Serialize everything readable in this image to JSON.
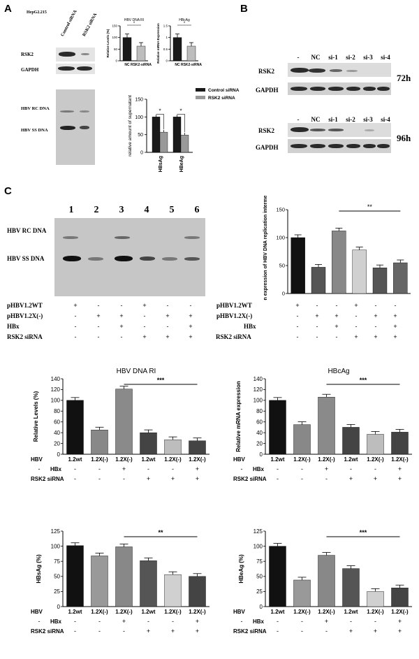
{
  "panel_a": {
    "letter": "A",
    "cell_line": "HepG2.215",
    "lane_labels": [
      "Control siRNA",
      "RSK2 siRNA"
    ],
    "row_rsk2": "RSK2",
    "row_gapdh": "GAPDH",
    "rc_dna": "HBV RC DNA",
    "ss_dna": "HBV SS DNA"
  },
  "panel_b": {
    "letter": "B",
    "lanes": [
      "-",
      "NC",
      "si-1",
      "si-2",
      "si-3",
      "si-4"
    ],
    "row_rsk2": "RSK2",
    "row_gapdh": "GAPDH",
    "time_72": "72h",
    "time_96": "96h"
  },
  "panel_c": {
    "letter": "C",
    "lane_numbers": [
      "1",
      "2",
      "3",
      "4",
      "5",
      "6"
    ],
    "rc_dna": "HBV  RC DNA",
    "ss_dna": "HBV SS DNA",
    "rows": [
      {
        "label": "pHBV1.2WT",
        "signs": [
          "+",
          "-",
          "-",
          "+",
          "-",
          "-"
        ]
      },
      {
        "label": "pHBV1.2X(-)",
        "signs": [
          "-",
          "+",
          "+",
          "-",
          "+",
          "+"
        ]
      },
      {
        "label": "HBx",
        "signs": [
          "-",
          "-",
          "+",
          "-",
          "-",
          "+"
        ]
      },
      {
        "label": "RSK2 siRNA",
        "signs": [
          "-",
          "-",
          "-",
          "+",
          "+",
          "+"
        ]
      }
    ]
  },
  "chart_data": [
    {
      "id": "a-rsk2-ri",
      "type": "bar",
      "title": "HBV DNA RI",
      "ylabel": "Relative Levels (%)",
      "categories": [
        "NC",
        "RSK2-siRNA"
      ],
      "values": [
        100,
        63
      ],
      "ylim": [
        0,
        150
      ],
      "yticks": [
        0,
        50,
        100,
        150
      ],
      "colors": [
        "#1a1a1a",
        "#bdbdbd"
      ],
      "significance": "*"
    },
    {
      "id": "a-rsk2-hbcag",
      "type": "bar",
      "title": "HBcAg",
      "ylabel": "Relative mRNA Expression",
      "categories": [
        "NC",
        "RSK2-siRNA"
      ],
      "values": [
        1.0,
        0.63
      ],
      "ylim": [
        0,
        1.5
      ],
      "yticks": [
        0.0,
        0.5,
        1.0,
        1.5
      ],
      "colors": [
        "#1a1a1a",
        "#bdbdbd"
      ],
      "significance": "*"
    },
    {
      "id": "a-supernatant",
      "type": "bar",
      "ylabel": "relative amount of supernatant",
      "categories": [
        "HBsAg",
        "HBeAg"
      ],
      "series": [
        {
          "name": "Control siRNA",
          "values": [
            100,
            100
          ],
          "color": "#1a1a1a"
        },
        {
          "name": "RSK2 siRNA",
          "values": [
            57,
            49
          ],
          "color": "#999999"
        }
      ],
      "ylim": [
        0,
        150
      ],
      "yticks": [
        0,
        50,
        100,
        150
      ],
      "significance": "*",
      "legend": "top-right"
    },
    {
      "id": "c-normalized",
      "type": "bar",
      "ylabel": "Normalization expression of HBV DNA replication intermediates(%)",
      "categories": [
        "1",
        "2",
        "3",
        "4",
        "5",
        "6"
      ],
      "values": [
        100,
        47,
        112,
        78,
        46,
        55
      ],
      "ylim": [
        0,
        150
      ],
      "yticks": [
        0,
        50,
        100,
        150
      ],
      "colors": [
        "#111111",
        "#555555",
        "#888888",
        "#d0d0d0",
        "#555555",
        "#666666"
      ],
      "significance": "**",
      "bracket": [
        3,
        6
      ]
    },
    {
      "id": "c-ri",
      "type": "bar",
      "title": "HBV DNA RI",
      "ylabel": "Relative Levels (%)",
      "categories": [
        "1.2wt",
        "1.2X(-)",
        "1.2X(-)",
        "1.2wt",
        "1.2X(-)",
        "1.2X(-)"
      ],
      "values": [
        100,
        45,
        121,
        40,
        27,
        25
      ],
      "ylim": [
        0,
        140
      ],
      "yticks": [
        0,
        20,
        40,
        60,
        80,
        100,
        120,
        140
      ],
      "colors": [
        "#111111",
        "#888888",
        "#8a8a8a",
        "#444444",
        "#bdbdbd",
        "#444444"
      ],
      "significance": "***",
      "bracket": [
        3,
        6
      ],
      "condition_labels": [
        "HBV",
        "HBx",
        "RSK2 siRNA"
      ],
      "hbx": [
        "-",
        "-",
        "+",
        "-",
        "-",
        "+"
      ],
      "rsk2": [
        "-",
        "-",
        "-",
        "+",
        "+",
        "+"
      ]
    },
    {
      "id": "c-hbcag",
      "type": "bar",
      "title": "HBcAg",
      "ylabel": "Relative  mRNA expression",
      "categories": [
        "1.2wt",
        "1.2X(-)",
        "1.2X(-)",
        "1.2wt",
        "1.2X(-)",
        "1.2X(-)"
      ],
      "values": [
        100,
        55,
        106,
        50,
        37,
        41
      ],
      "ylim": [
        0,
        140
      ],
      "yticks": [
        0,
        20,
        40,
        60,
        80,
        100,
        120,
        140
      ],
      "colors": [
        "#111111",
        "#888888",
        "#8a8a8a",
        "#444444",
        "#bdbdbd",
        "#444444"
      ],
      "significance": "***",
      "bracket": [
        3,
        6
      ],
      "condition_labels": [
        "HBV",
        "HBx",
        "RSK2 siRNA"
      ],
      "hbx": [
        "-",
        "-",
        "+",
        "-",
        "-",
        "+"
      ],
      "rsk2": [
        "-",
        "-",
        "-",
        "+",
        "+",
        "+"
      ]
    },
    {
      "id": "c-hbsag",
      "type": "bar",
      "ylabel": "HBsAg (%)",
      "categories": [
        "1.2wt",
        "1.2X(-)",
        "1.2X(-)",
        "1.2wt",
        "1.2X(-)",
        "1.2X(-)"
      ],
      "values": [
        101,
        84,
        99,
        76,
        53,
        50
      ],
      "ylim": [
        0,
        125
      ],
      "yticks": [
        0,
        25,
        50,
        75,
        100,
        125
      ],
      "colors": [
        "#111111",
        "#999999",
        "#888888",
        "#555555",
        "#d0d0d0",
        "#444444"
      ],
      "significance": "**",
      "bracket": [
        3,
        6
      ],
      "condition_labels": [
        "HBV",
        "HBx",
        "RSK2 siRNA"
      ],
      "hbx": [
        "-",
        "-",
        "+",
        "-",
        "-",
        "+"
      ],
      "rsk2": [
        "-",
        "-",
        "-",
        "+",
        "+",
        "+"
      ]
    },
    {
      "id": "c-hbeag",
      "type": "bar",
      "ylabel": "HBeAg (%)",
      "categories": [
        "1.2wt",
        "1.2X(-)",
        "1.2X(-)",
        "1.2wt",
        "1.2X(-)",
        "1.2X(-)"
      ],
      "values": [
        100,
        44,
        85,
        63,
        25,
        31
      ],
      "ylim": [
        0,
        125
      ],
      "yticks": [
        0,
        25,
        50,
        75,
        100,
        125
      ],
      "colors": [
        "#111111",
        "#999999",
        "#888888",
        "#555555",
        "#d0d0d0",
        "#444444"
      ],
      "significance": "***",
      "bracket": [
        3,
        6
      ],
      "condition_labels": [
        "HBV",
        "HBx",
        "RSK2 siRNA"
      ],
      "hbx": [
        "-",
        "-",
        "+",
        "-",
        "-",
        "+"
      ],
      "rsk2": [
        "-",
        "-",
        "-",
        "+",
        "+",
        "+"
      ]
    }
  ]
}
